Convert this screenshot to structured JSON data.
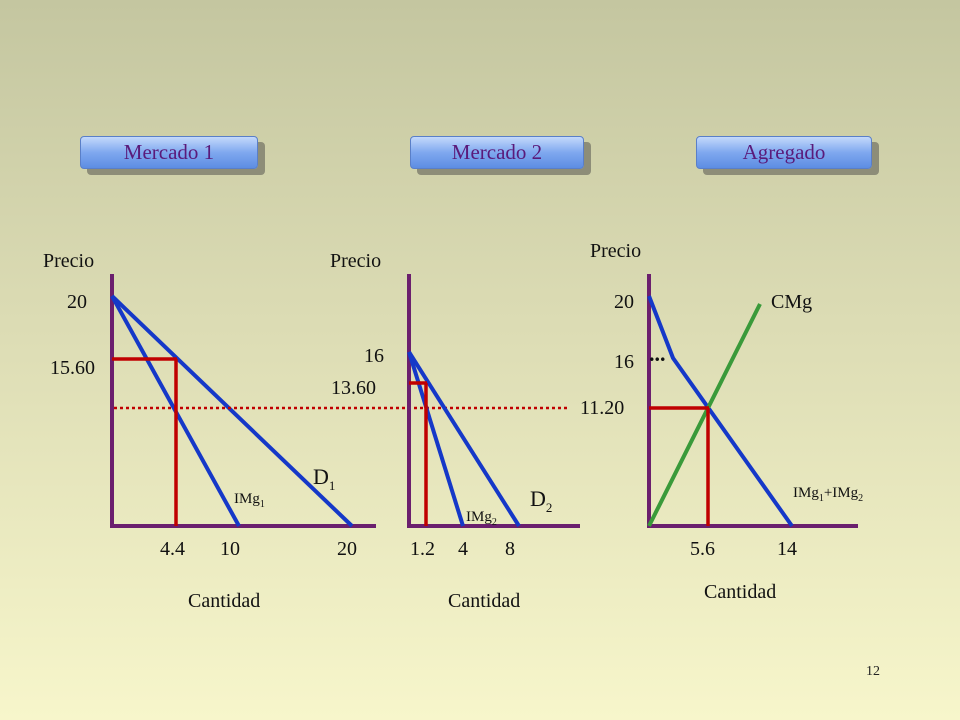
{
  "buttons": {
    "market1": "Mercado 1",
    "market2": "Mercado 2",
    "aggregate": "Agregado"
  },
  "labels": {
    "price": "Precio",
    "quantity": "Cantidad",
    "demand1_base": "D",
    "demand1_sub": "1",
    "mr1_base": "IMg",
    "mr1_sub": "1",
    "demand2_base": "D",
    "demand2_sub": "2",
    "mr2_base": "IMg",
    "mr2_sub": "2",
    "mc": "CMg",
    "mr_sum_a": "IMg",
    "mr_sum_sub1": "1",
    "mr_sum_plus": "+IMg",
    "mr_sum_sub2": "2",
    "ellipsis": "..."
  },
  "panel1": {
    "y_ticks": [
      "20",
      "15.60"
    ],
    "x_ticks": [
      "4.4",
      "10",
      "20"
    ]
  },
  "panel2": {
    "y_ticks": [
      "16",
      "13.60"
    ],
    "x_ticks": [
      "1.2",
      "4",
      "8"
    ]
  },
  "panel3": {
    "y_ticks": [
      "20",
      "16",
      "11.20"
    ],
    "x_ticks": [
      "5.6",
      "14"
    ]
  },
  "colors": {
    "axis": "#6b1f6e",
    "curve": "#1538c8",
    "red": "#c00000",
    "mc": "#3a9a3a"
  },
  "slide_number": "12"
}
